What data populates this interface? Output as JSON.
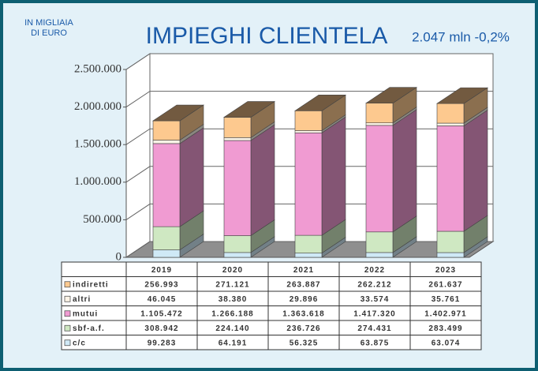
{
  "chart_data": {
    "type": "stacked-bar-3d",
    "unit_label": [
      "IN MIGLIAIA",
      "DI EURO"
    ],
    "title": "IMPIEGHI CLIENTELA",
    "subtitle": "2.047 mln -0,2%",
    "categories": [
      "2019",
      "2020",
      "2021",
      "2022",
      "2023"
    ],
    "ylim": [
      0,
      2500000
    ],
    "yticks": [
      0,
      {
        "value": 500000,
        "label": "500.000"
      },
      {
        "value": 1000000,
        "label": "1.000.000"
      },
      {
        "value": 1500000,
        "label": "1.500.000"
      },
      {
        "value": 2000000,
        "label": "2.000.000"
      },
      {
        "value": 2500000,
        "label": "2.500.000"
      }
    ],
    "grid": true,
    "series": [
      {
        "name": "c/c",
        "color": "#cfe9f6",
        "values": [
          99283,
          64191,
          56325,
          63875,
          63074
        ],
        "value_labels": [
          "99.283",
          "64.191",
          "56.325",
          "63.875",
          "63.074"
        ]
      },
      {
        "name": "sbf-a.f.",
        "color": "#cfe8c2",
        "values": [
          308942,
          224140,
          236726,
          274431,
          283499
        ],
        "value_labels": [
          "308.942",
          "224.140",
          "236.726",
          "274.431",
          "283.499"
        ]
      },
      {
        "name": "mutui",
        "color": "#f09bd2",
        "values": [
          1105472,
          1266188,
          1363618,
          1417320,
          1402971
        ],
        "value_labels": [
          "1.105.472",
          "1.266.188",
          "1.363.618",
          "1.417.320",
          "1.402.971"
        ]
      },
      {
        "name": "altri",
        "color": "#fbf3e6",
        "values": [
          46045,
          38380,
          29896,
          33574,
          35761
        ],
        "value_labels": [
          "46.045",
          "38.380",
          "29.896",
          "33.574",
          "35.761"
        ]
      },
      {
        "name": "indiretti",
        "color": "#fdc98f",
        "values": [
          256993,
          271121,
          263887,
          262212,
          261637
        ],
        "value_labels": [
          "256.993",
          "271.121",
          "263.887",
          "262.212",
          "261.637"
        ]
      }
    ]
  }
}
